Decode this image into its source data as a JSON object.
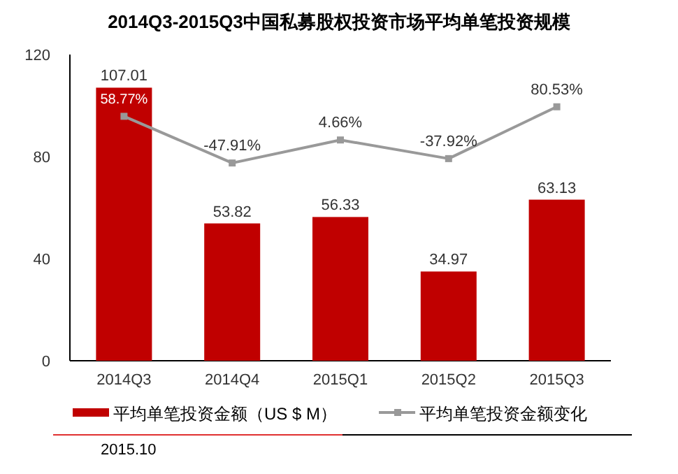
{
  "chart_data": {
    "type": "bar",
    "title": "2014Q3-2015Q3中国私募股权投资市场平均单笔投资规模",
    "categories": [
      "2014Q3",
      "2014Q4",
      "2015Q1",
      "2015Q2",
      "2015Q3"
    ],
    "series": [
      {
        "name": "平均单笔投资金额（US $ M）",
        "type": "bar",
        "color": "#c00000",
        "values": [
          107.01,
          53.82,
          56.33,
          34.97,
          63.13
        ],
        "value_labels": [
          "107.01",
          "53.82",
          "56.33",
          "34.97",
          "63.13"
        ]
      },
      {
        "name": "平均单笔投资金额变化",
        "type": "line",
        "axis": "y2",
        "color": "#999999",
        "marker": "square",
        "values": [
          58.77,
          -47.91,
          4.66,
          -37.92,
          80.53
        ],
        "value_labels": [
          "58.77%",
          "-47.91%",
          "4.66%",
          "-37.92%",
          "80.53%"
        ]
      }
    ],
    "ylim": [
      0,
      120
    ],
    "yticks": [
      0,
      40,
      80,
      120
    ],
    "y2lim": [
      -500,
      200
    ],
    "tick_labels": "y",
    "legend": "bottom",
    "grid": false,
    "annotations": [
      "2015.10"
    ]
  }
}
